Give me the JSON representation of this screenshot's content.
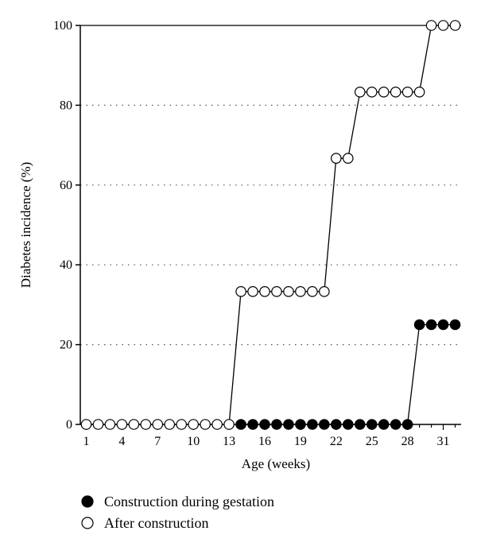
{
  "chart_data": {
    "type": "line",
    "xlabel": "Age (weeks)",
    "ylabel": "Diabetes incidence (%)",
    "xlim": [
      0.5,
      32.5
    ],
    "ylim": [
      0,
      100
    ],
    "x_ticks": [
      1,
      4,
      7,
      10,
      13,
      16,
      19,
      22,
      25,
      28,
      31
    ],
    "y_ticks": [
      0,
      20,
      40,
      60,
      80,
      100
    ],
    "grid": "horizontal-dotted",
    "legend_position": "bottom-left",
    "x": [
      1,
      2,
      3,
      4,
      5,
      6,
      7,
      8,
      9,
      10,
      11,
      12,
      13,
      14,
      15,
      16,
      17,
      18,
      19,
      20,
      21,
      22,
      23,
      24,
      25,
      26,
      27,
      28,
      29,
      30,
      31,
      32
    ],
    "series": [
      {
        "name": "Construction during gestation",
        "marker": "filled-circle",
        "x": [
          14,
          15,
          16,
          17,
          18,
          19,
          20,
          21,
          22,
          23,
          24,
          25,
          26,
          27,
          28,
          29,
          30,
          31,
          32
        ],
        "values": [
          0,
          0,
          0,
          0,
          0,
          0,
          0,
          0,
          0,
          0,
          0,
          0,
          0,
          0,
          0,
          25,
          25,
          25,
          25
        ]
      },
      {
        "name": "After construction",
        "marker": "open-circle",
        "x": [
          1,
          2,
          3,
          4,
          5,
          6,
          7,
          8,
          9,
          10,
          11,
          12,
          13,
          14,
          15,
          16,
          17,
          18,
          19,
          20,
          21,
          22,
          23,
          24,
          25,
          26,
          27,
          28,
          29,
          30,
          31,
          32
        ],
        "values": [
          0,
          0,
          0,
          0,
          0,
          0,
          0,
          0,
          0,
          0,
          0,
          0,
          0,
          33.3,
          33.3,
          33.3,
          33.3,
          33.3,
          33.3,
          33.3,
          33.3,
          66.7,
          66.7,
          83.3,
          83.3,
          83.3,
          83.3,
          83.3,
          83.3,
          100,
          100,
          100
        ]
      }
    ],
    "colors": {
      "axis": "#000000",
      "grid": "#555555",
      "filled": "#000000",
      "open_fill": "#ffffff"
    }
  }
}
